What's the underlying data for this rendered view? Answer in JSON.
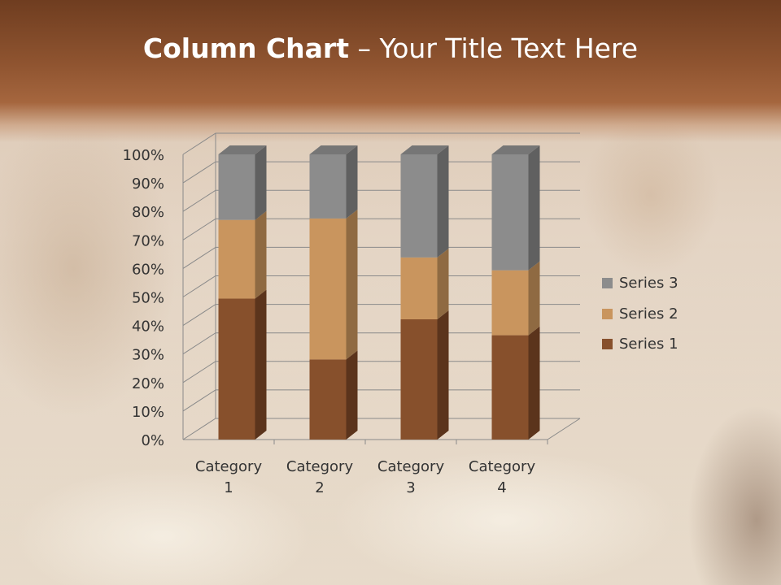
{
  "slide": {
    "title_bold": "Column Chart",
    "title_rest": " – Your Title Text Here"
  },
  "chart_data": {
    "type": "bar",
    "stacking": "percent",
    "three_d": true,
    "categories": [
      "Category 1",
      "Category 2",
      "Category 3",
      "Category 4"
    ],
    "series": [
      {
        "name": "Series 1",
        "values": [
          4.3,
          2.5,
          3.5,
          4.5
        ],
        "color": "#87502c"
      },
      {
        "name": "Series 2",
        "values": [
          2.4,
          4.4,
          1.8,
          2.8
        ],
        "color": "#c9955e"
      },
      {
        "name": "Series 3",
        "values": [
          2,
          2,
          3,
          5
        ],
        "color": "#8c8c8c"
      }
    ],
    "y_ticks": [
      "0%",
      "10%",
      "20%",
      "30%",
      "40%",
      "50%",
      "60%",
      "70%",
      "80%",
      "90%",
      "100%"
    ],
    "ylim": [
      0,
      100
    ],
    "grid": true,
    "legend": "right"
  }
}
